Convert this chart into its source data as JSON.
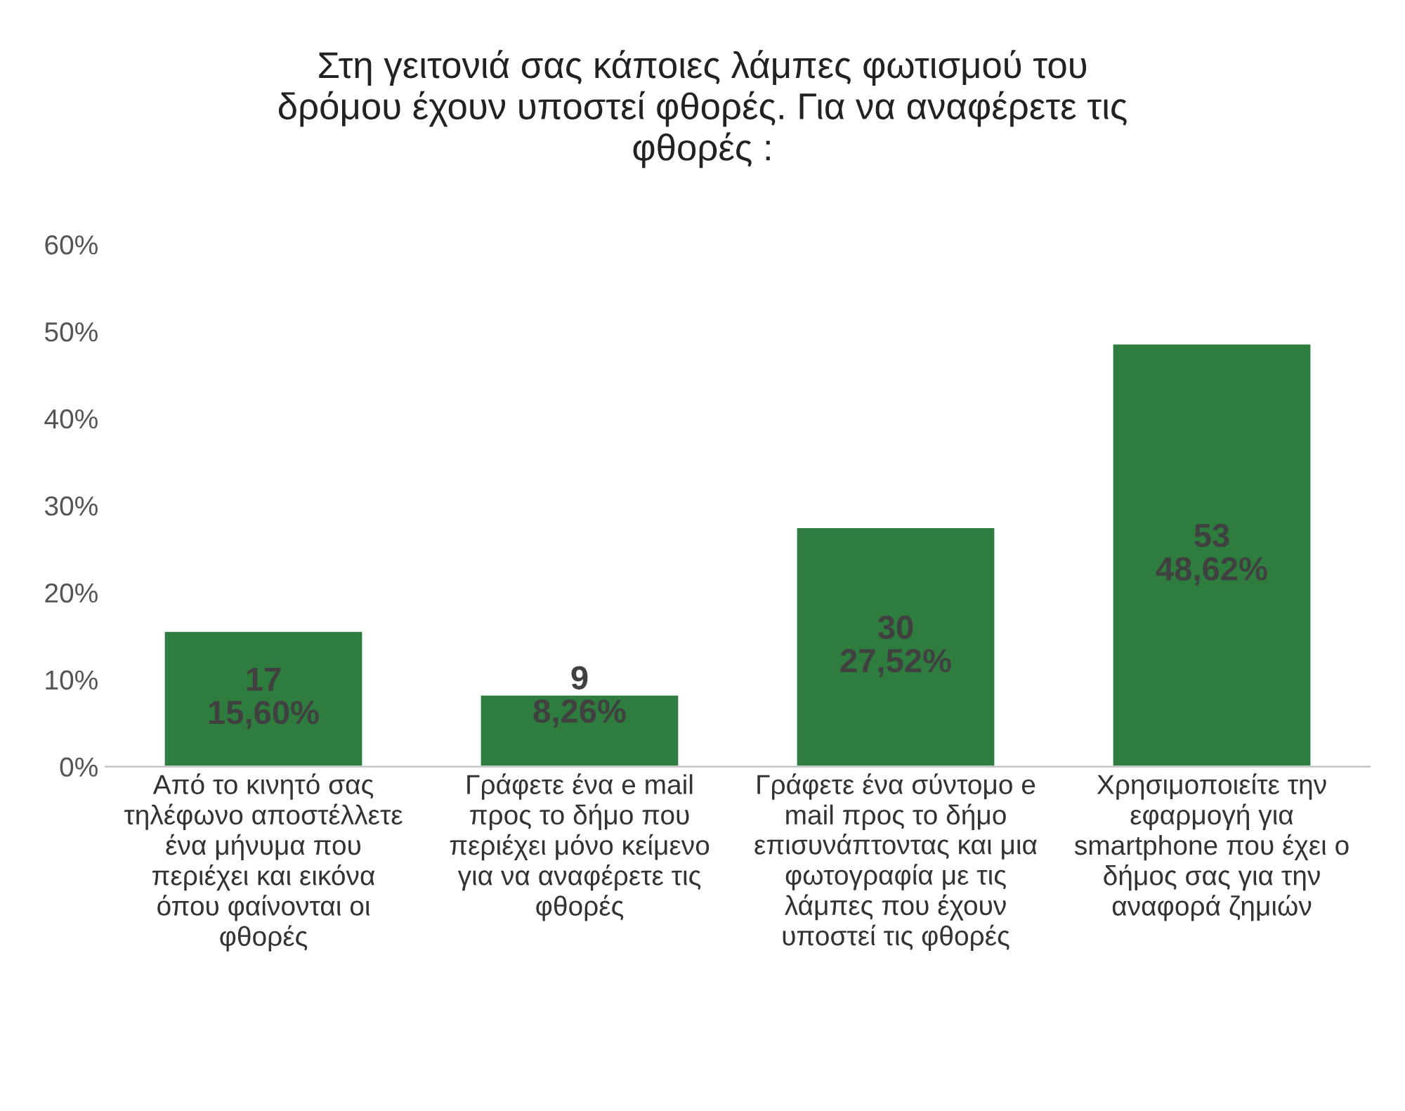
{
  "chart_data": {
    "type": "bar",
    "title": "Στη γειτονιά σας κάποιες λάμπες φωτισμού του δρόμου έχουν υποστεί φθορές. Για να αναφέρετε τις φθορές :",
    "categories": [
      "Από το κινητό σας τηλέφωνο αποστέλλετε ένα μήνυμα που περιέχει και εικόνα όπου φαίνονται οι φθορές",
      "Γράφετε ένα e mail προς το δήμο που περιέχει μόνο κείμενο για να αναφέρετε τις φθορές",
      "Γράφετε ένα σύντομο e mail προς το δήμο επισυνάπτοντας και μια φωτογραφία με τις λάμπες που έχουν υποστεί τις φθορές",
      "Χρησιμοποιείτε την εφαρμογή για smartphone που έχει ο δήμος σας για την αναφορά ζημιών"
    ],
    "values": [
      15.6,
      8.26,
      27.52,
      48.62
    ],
    "value_labels": [
      "17\n15,60%",
      "9\n8,26%",
      "30\n27,52%",
      "53\n48,62%"
    ],
    "color": "#2e7d3f",
    "ylim": [
      0,
      60
    ],
    "yticks": [
      {
        "value": 0,
        "label": "0%"
      },
      {
        "value": 10,
        "label": "10%"
      },
      {
        "value": 20,
        "label": "20%"
      },
      {
        "value": 30,
        "label": "30%"
      },
      {
        "value": 40,
        "label": "40%"
      },
      {
        "value": 50,
        "label": "50%"
      },
      {
        "value": 60,
        "label": "60%"
      }
    ],
    "grid": false,
    "legend": false
  }
}
